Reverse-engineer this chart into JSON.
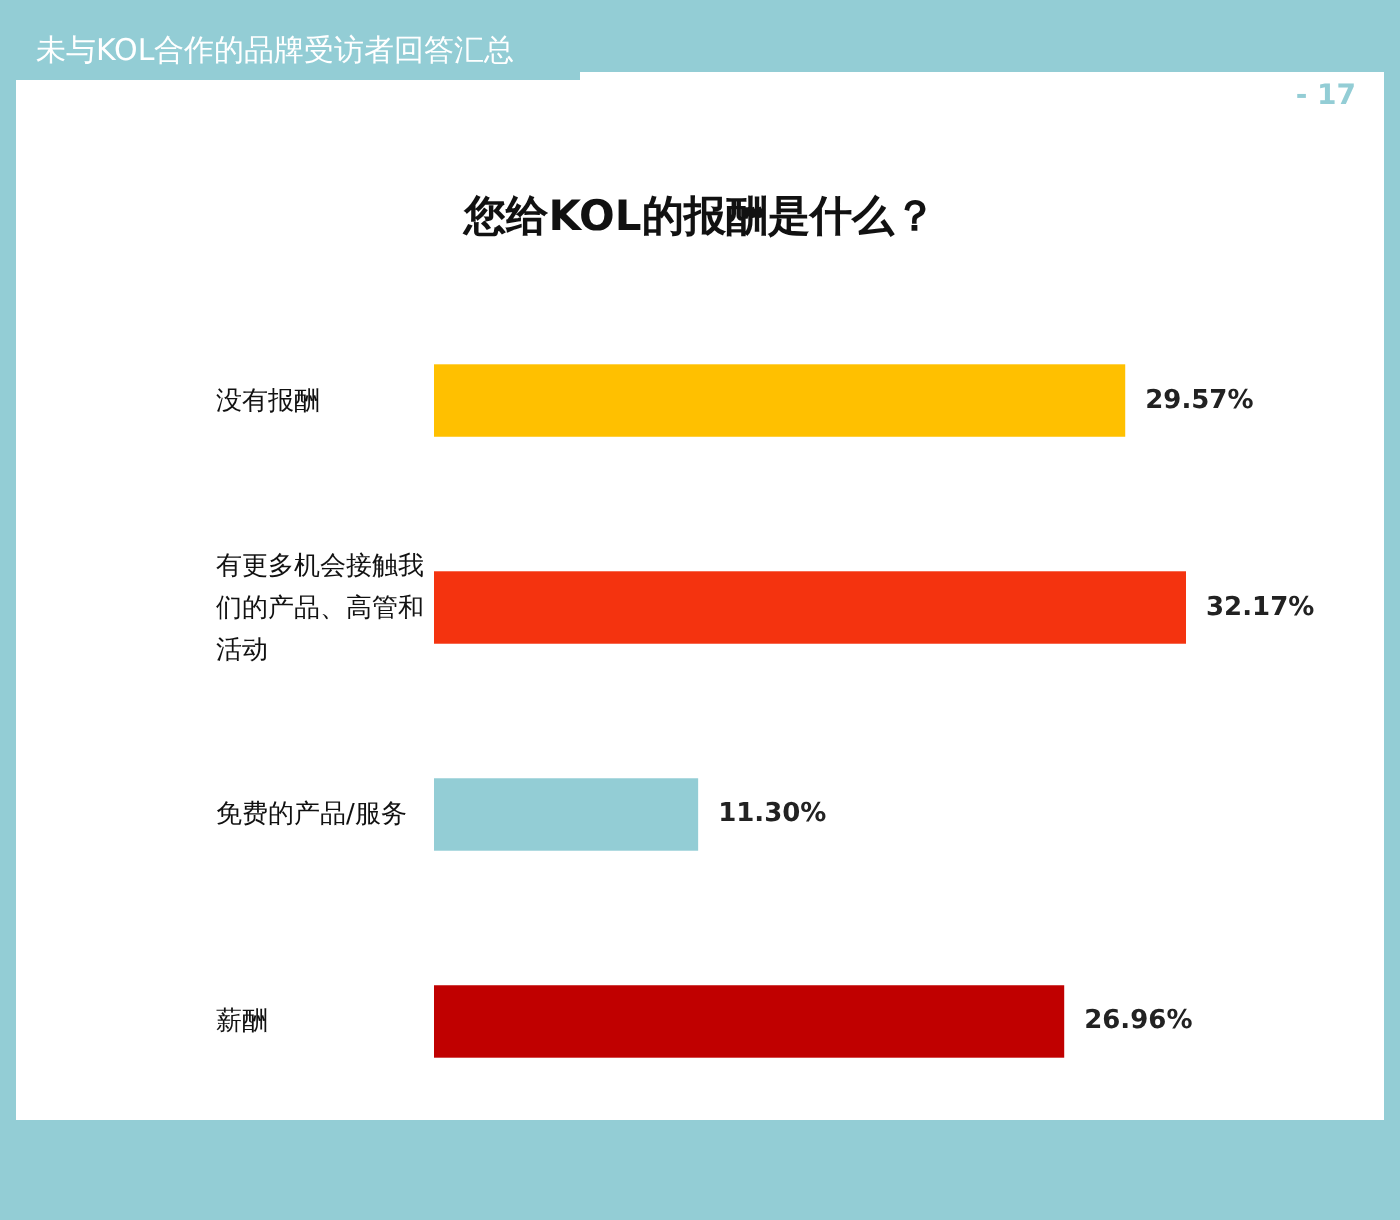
{
  "chart_data": {
    "type": "bar",
    "orientation": "horizontal",
    "subtitle": "未与KOL合作的品牌受访者回答汇总",
    "title": "您给KOL的报酬是什么？",
    "annotations": [
      "- 17"
    ],
    "categories": [
      "没有报酬",
      "有更多机会接触我们的产品、高管和活动",
      "免费的产品/服务",
      "薪酬"
    ],
    "values": [
      29.57,
      32.17,
      11.3,
      26.96
    ],
    "colors": [
      "#ffc000",
      "#f4330f",
      "#93cdd5",
      "#c00000"
    ],
    "value_labels": [
      "29.57%",
      "32.17%",
      "11.30%",
      "26.96%"
    ]
  }
}
